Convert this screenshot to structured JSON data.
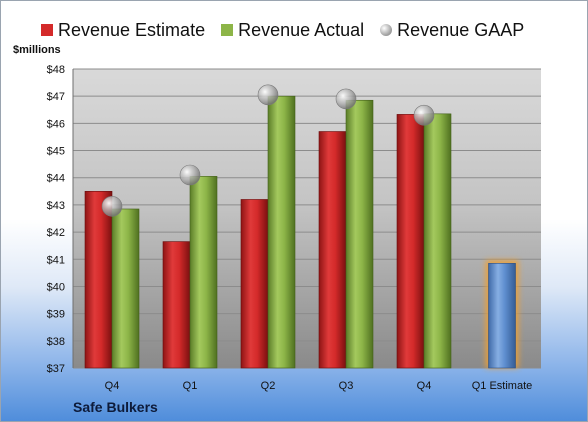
{
  "legend": {
    "estimate": "Revenue Estimate",
    "actual": "Revenue Actual",
    "gaap": "Revenue GAAP"
  },
  "ylabel": "$millions",
  "brand": "Safe Bulkers",
  "colors": {
    "estimate": "#d42a2a",
    "actual": "#8db548",
    "gaap": "#b5b5b5",
    "future": "#5f8fd0",
    "future_glow": "#f0a030"
  },
  "chart_data": {
    "type": "bar",
    "categories": [
      "Q4",
      "Q1",
      "Q2",
      "Q3",
      "Q4",
      "Q1 Estimate"
    ],
    "series": [
      {
        "name": "Revenue Estimate",
        "values": [
          43.5,
          41.65,
          43.2,
          45.7,
          46.33,
          40.85
        ]
      },
      {
        "name": "Revenue Actual",
        "values": [
          42.85,
          44.05,
          47.0,
          46.85,
          46.35,
          null
        ]
      },
      {
        "name": "Revenue GAAP",
        "values": [
          42.95,
          44.1,
          47.05,
          46.9,
          46.3,
          null
        ]
      }
    ],
    "yticks": [
      "$37",
      "$38",
      "$39",
      "$40",
      "$41",
      "$42",
      "$43",
      "$44",
      "$45",
      "$46",
      "$47",
      "$48"
    ],
    "ylim": [
      37,
      48
    ],
    "grid": true,
    "legend": "top"
  }
}
